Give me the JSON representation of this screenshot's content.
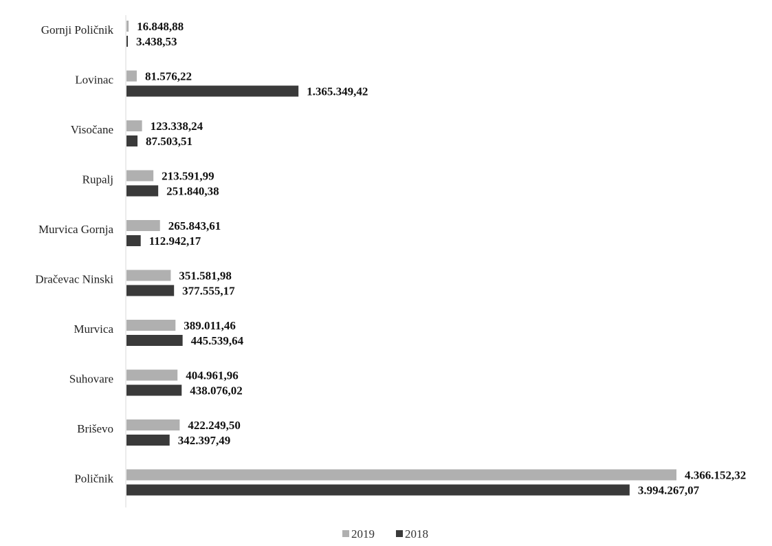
{
  "chart_data": {
    "type": "bar",
    "orientation": "horizontal",
    "categories": [
      "Gornji Poličnik",
      "Lovinac",
      "Visočane",
      "Rupalj",
      "Murvica Gornja",
      "Dračevac Ninski",
      "Murvica",
      "Suhovare",
      "Briševo",
      "Poličnik"
    ],
    "series": [
      {
        "name": "2019",
        "color": "#b0b0b0",
        "values": [
          16848.88,
          81576.22,
          123338.24,
          213591.99,
          265843.61,
          351581.98,
          389011.46,
          404961.96,
          422249.5,
          4366152.32
        ],
        "labels": [
          "16.848,88",
          "81.576,22",
          "123.338,24",
          "213.591,99",
          "265.843,61",
          "351.581,98",
          "389.011,46",
          "404.961,96",
          "422.249,50",
          "4.366.152,32"
        ]
      },
      {
        "name": "2018",
        "color": "#3a3a3a",
        "values": [
          3438.53,
          1365349.42,
          87503.51,
          251840.38,
          112942.17,
          377555.17,
          445539.64,
          438076.02,
          342397.49,
          3994267.07
        ],
        "labels": [
          "3.438,53",
          "1.365.349,42",
          "87.503,51",
          "251.840,38",
          "112.942,17",
          "377.555,17",
          "445.539,64",
          "438.076,02",
          "342.397,49",
          "3.994.267,07"
        ]
      }
    ],
    "xlim": [
      0,
      4366152.32
    ],
    "grid": false,
    "legend_position": "bottom-center"
  }
}
